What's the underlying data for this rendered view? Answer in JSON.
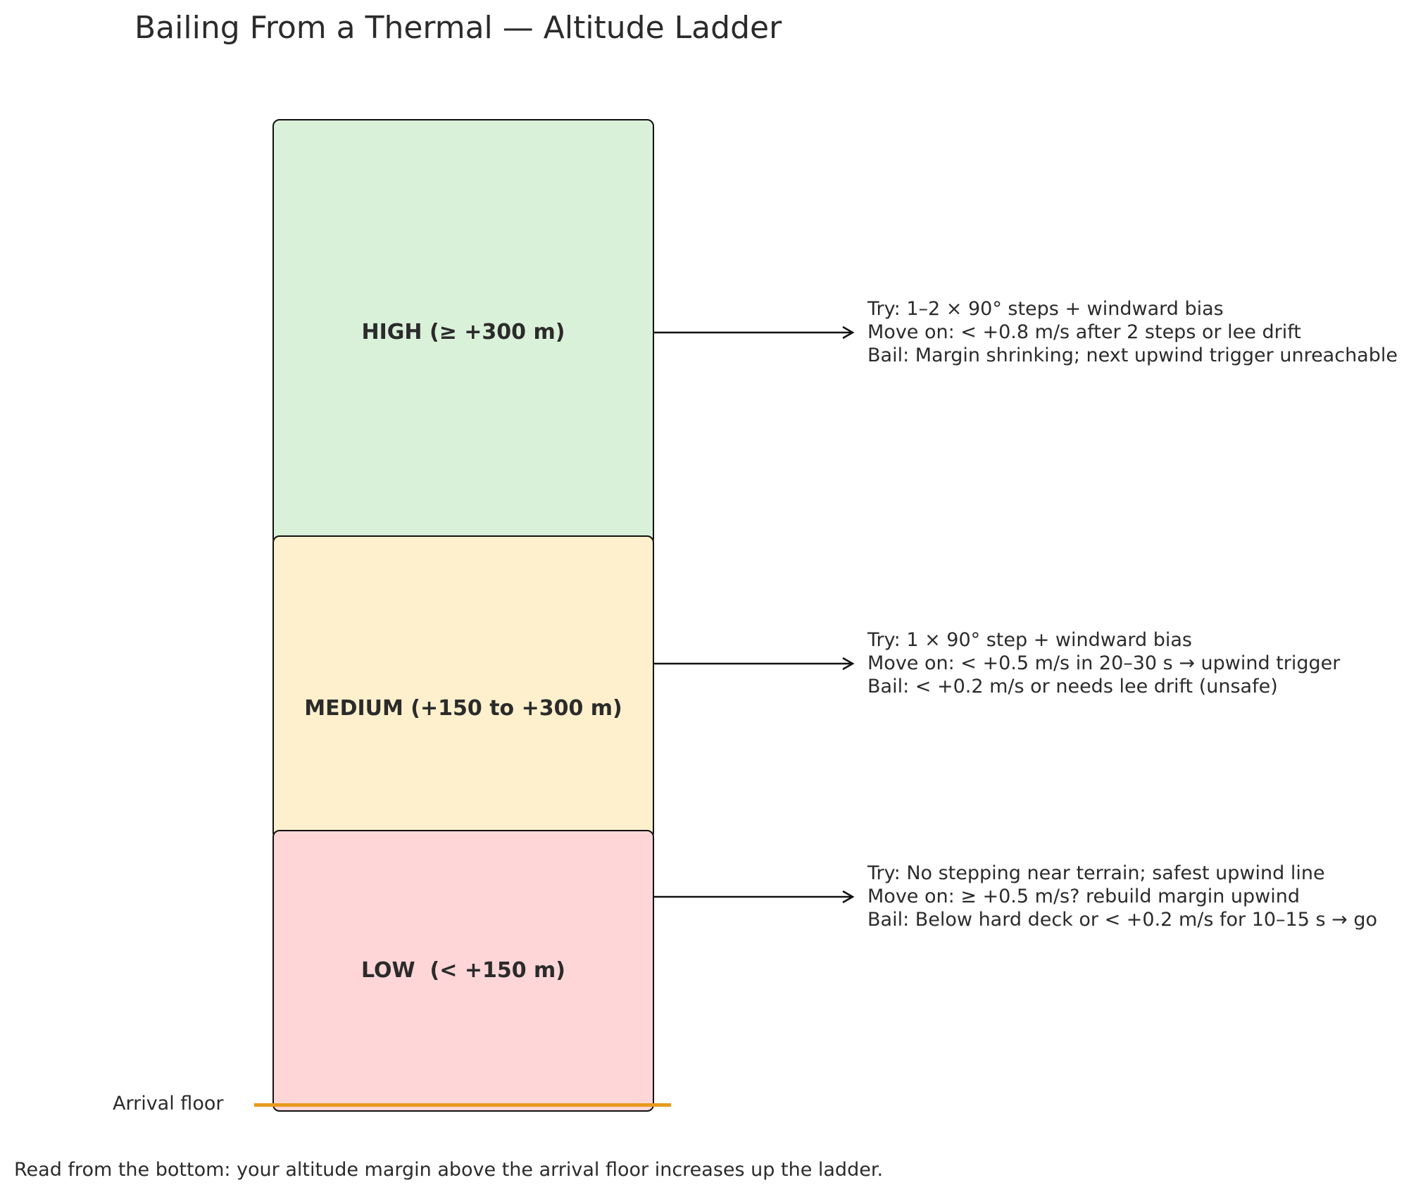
{
  "title": "Bailing From a Thermal — Altitude Ladder",
  "colors": {
    "high": "#daf1d9",
    "medium": "#fef0cc",
    "low": "#fed6d8",
    "arrival_floor": "#e89a1d",
    "outline": "#111111"
  },
  "bands": {
    "high": {
      "label": "HIGH (≥ +300 m)",
      "notes": [
        "Try: 1–2 × 90° steps + windward bias",
        "Move on: < +0.8 m/s after 2 steps or lee drift",
        "Bail: Margin shrinking; next upwind trigger unreachable"
      ]
    },
    "medium": {
      "label": "MEDIUM (+150 to +300 m)",
      "notes": [
        "Try: 1 × 90° step + windward bias",
        "Move on: < +0.5 m/s in 20–30 s → upwind trigger",
        "Bail: < +0.2 m/s or needs lee drift (unsafe)"
      ]
    },
    "low": {
      "label": "LOW  (< +150 m)",
      "notes": [
        "Try: No stepping near terrain; safest upwind line",
        "Move on: ≥ +0.5 m/s? rebuild margin upwind",
        "Bail: Below hard deck or < +0.2 m/s for 10–15 s → go"
      ]
    }
  },
  "arrival_floor_label": "Arrival floor",
  "footnote": "Read from the bottom: your altitude margin above the arrival floor increases up the ladder."
}
